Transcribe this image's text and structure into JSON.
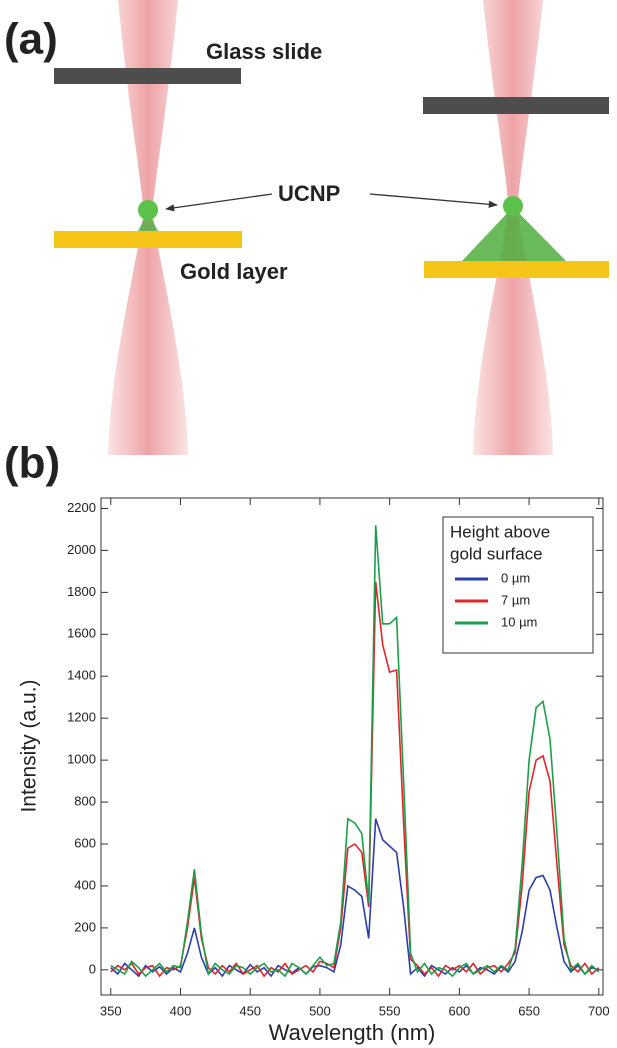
{
  "diagram": {
    "panel_label": "(a)",
    "glass_label": "Glass slide",
    "particle_label": "UCNP",
    "gold_label": "Gold layer"
  },
  "chart_data": {
    "type": "line",
    "panel_label": "(b)",
    "x_label": "Wavelength (nm)",
    "y_label": "Intensity (a.u.)",
    "legend_title": [
      "Height above",
      "gold surface"
    ],
    "legend": "upper right",
    "x": [
      350,
      355,
      360,
      365,
      370,
      375,
      380,
      385,
      390,
      395,
      400,
      405,
      410,
      415,
      420,
      425,
      430,
      435,
      440,
      445,
      450,
      455,
      460,
      465,
      470,
      475,
      480,
      485,
      490,
      495,
      500,
      505,
      510,
      515,
      520,
      525,
      530,
      535,
      540,
      545,
      550,
      555,
      560,
      565,
      570,
      575,
      580,
      585,
      590,
      595,
      600,
      605,
      610,
      615,
      620,
      625,
      630,
      635,
      640,
      645,
      650,
      655,
      660,
      665,
      670,
      675,
      680,
      685,
      690,
      695,
      700
    ],
    "series": [
      {
        "name": "0 µm",
        "color": "#2b3fa8",
        "values": [
          10,
          -20,
          30,
          0,
          -30,
          20,
          -10,
          15,
          -20,
          10,
          -10,
          80,
          200,
          60,
          -20,
          10,
          -30,
          20,
          0,
          -20,
          25,
          -10,
          10,
          -30,
          20,
          0,
          -15,
          10,
          -20,
          15,
          20,
          10,
          -10,
          120,
          400,
          380,
          350,
          150,
          720,
          620,
          590,
          560,
          300,
          -20,
          10,
          -30,
          20,
          0,
          -20,
          10,
          -10,
          20,
          -20,
          10,
          0,
          -20,
          15,
          -10,
          40,
          180,
          380,
          440,
          450,
          380,
          200,
          40,
          -10,
          20,
          -20,
          10,
          0
        ]
      },
      {
        "name": "7 µm",
        "color": "#e0262a",
        "values": [
          -10,
          20,
          0,
          30,
          -20,
          10,
          20,
          -30,
          10,
          0,
          20,
          200,
          440,
          150,
          10,
          -20,
          20,
          -10,
          30,
          -20,
          0,
          20,
          -30,
          10,
          -10,
          30,
          -20,
          0,
          20,
          -10,
          40,
          30,
          10,
          200,
          580,
          600,
          560,
          300,
          1850,
          1550,
          1420,
          1430,
          700,
          50,
          20,
          -20,
          10,
          -30,
          20,
          0,
          20,
          -10,
          30,
          -20,
          10,
          20,
          -10,
          30,
          80,
          400,
          850,
          1000,
          1020,
          900,
          500,
          120,
          20,
          -10,
          30,
          -20,
          10
        ]
      },
      {
        "name": "10 µm",
        "color": "#1e9e4a",
        "values": [
          20,
          0,
          -20,
          40,
          10,
          -30,
          0,
          30,
          -10,
          20,
          10,
          230,
          480,
          170,
          -20,
          30,
          0,
          -20,
          20,
          10,
          -20,
          10,
          30,
          -10,
          0,
          -30,
          30,
          10,
          -20,
          20,
          60,
          20,
          30,
          230,
          720,
          700,
          650,
          320,
          2120,
          1650,
          1650,
          1680,
          900,
          80,
          -10,
          30,
          -20,
          10,
          0,
          -30,
          10,
          30,
          -20,
          0,
          20,
          -10,
          20,
          0,
          100,
          500,
          1000,
          1250,
          1280,
          1100,
          650,
          150,
          0,
          30,
          -20,
          20,
          -10
        ]
      }
    ],
    "xlim": [
      343,
      703
    ],
    "ylim": [
      -120,
      2250
    ],
    "xticks": [
      350,
      400,
      450,
      500,
      550,
      600,
      650,
      700
    ],
    "yticks": [
      0,
      200,
      400,
      600,
      800,
      1000,
      1200,
      1400,
      1600,
      1800,
      2000,
      2200
    ]
  }
}
